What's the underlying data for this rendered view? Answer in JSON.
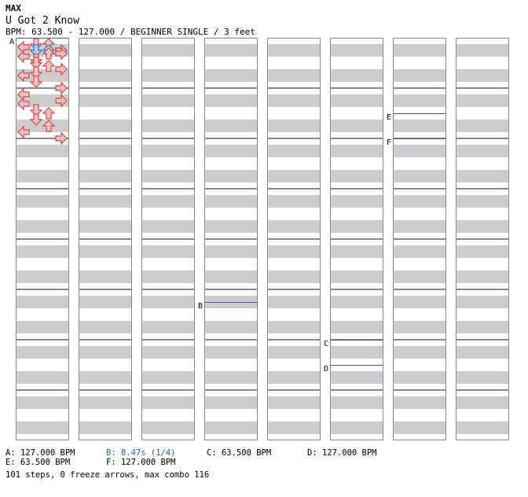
{
  "header": {
    "game": "MAX",
    "title": "U Got 2 Know",
    "subtitle": "BPM: 63.500 - 127.000 / BEGINNER SINGLE / 3 feet"
  },
  "colors": {
    "stripe": "#cccccc",
    "tap_fill": "#ffc0c0",
    "tap_stroke": "#d04848",
    "chord_fill": "#a8d0f8",
    "chord_stroke": "#3b78b8",
    "marker_line": "#3060c0",
    "stop_text": "#2060c0"
  },
  "chart_data": {
    "type": "dance-chart",
    "columns": 8,
    "measures_per_column": 8,
    "lanes": [
      "left",
      "down",
      "up",
      "right"
    ],
    "arrows": [
      [
        0,
        0,
        0.0,
        "down",
        false
      ],
      [
        0,
        0,
        0.0,
        "up",
        false
      ],
      [
        0,
        0,
        0.25,
        "left",
        false
      ],
      [
        0,
        0,
        0.5,
        "right",
        false
      ],
      [
        0,
        0,
        0.75,
        "right",
        false
      ],
      [
        0,
        0,
        0.5,
        "down",
        true
      ],
      [
        0,
        0,
        0.5,
        "up",
        true
      ],
      [
        0,
        0,
        0.75,
        "up",
        false
      ],
      [
        0,
        0,
        1.0,
        "left",
        false
      ],
      [
        0,
        0,
        1.25,
        "down",
        false
      ],
      [
        0,
        0,
        1.5,
        "down",
        false
      ],
      [
        0,
        0,
        2.0,
        "right",
        false
      ],
      [
        0,
        0,
        1.75,
        "up",
        false
      ],
      [
        0,
        0,
        2.25,
        "down",
        false
      ],
      [
        0,
        0,
        2.5,
        "left",
        false
      ],
      [
        0,
        0,
        3.0,
        "down",
        false
      ],
      [
        0,
        0,
        3.5,
        "right",
        false
      ],
      [
        0,
        0,
        4.0,
        "left",
        false
      ],
      [
        0,
        0,
        4.5,
        "right",
        false
      ],
      [
        0,
        0,
        4.75,
        "left",
        false
      ],
      [
        0,
        0,
        5.25,
        "down",
        false
      ],
      [
        0,
        0,
        5.5,
        "up",
        false
      ],
      [
        0,
        0,
        6.0,
        "down",
        false
      ],
      [
        0,
        0,
        6.5,
        "up",
        false
      ],
      [
        0,
        0,
        7.0,
        "left",
        false
      ],
      [
        0,
        0,
        7.5,
        "right",
        false
      ]
    ],
    "markers": [
      {
        "label": "A",
        "col": 0,
        "pos": 0.0
      },
      {
        "label": "B",
        "col": 3,
        "pos": 5.25
      },
      {
        "label": "C",
        "col": 5,
        "pos": 6.0
      },
      {
        "label": "D",
        "col": 5,
        "pos": 6.5
      },
      {
        "label": "E",
        "col": 6,
        "pos": 1.5
      },
      {
        "label": "F",
        "col": 6,
        "pos": 2.0
      }
    ],
    "legend": [
      {
        "key": "A",
        "text": "A: 127.000 BPM",
        "kind": "bpm"
      },
      {
        "key": "B",
        "text": "B: 0.47s (1/4)",
        "kind": "stop"
      },
      {
        "key": "C",
        "text": "C: 63.500 BPM",
        "kind": "bpm"
      },
      {
        "key": "D",
        "text": "D: 127.000 BPM",
        "kind": "bpm"
      },
      {
        "key": "E",
        "text": "E: 63.500 BPM",
        "kind": "bpm"
      },
      {
        "key": "F",
        "text": "F: 127.000 BPM",
        "kind": "bpm"
      }
    ],
    "stats": "101 steps, 0 freeze arrows, max combo 116"
  }
}
